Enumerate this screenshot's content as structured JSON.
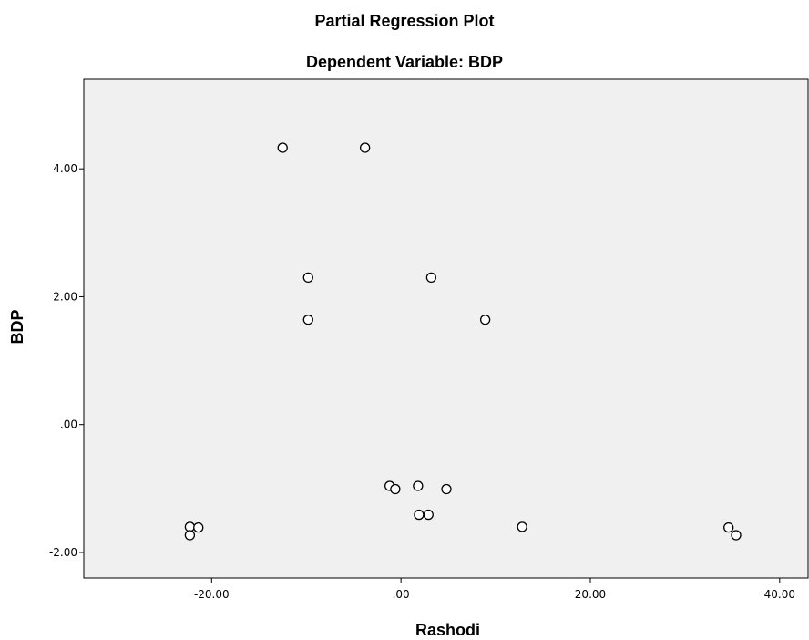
{
  "chart_data": {
    "type": "scatter",
    "title": "Partial Regression Plot",
    "subtitle": "Dependent Variable: BDP",
    "xlabel": "Rashodi",
    "ylabel": "BDP",
    "xlim": [
      -33.5,
      43
    ],
    "ylim": [
      -2.4,
      5.4
    ],
    "x_ticks": [
      -20,
      0,
      20,
      40
    ],
    "x_tick_labels": [
      "-20.00",
      ".00",
      "20.00",
      "40.00"
    ],
    "y_ticks": [
      -2,
      0,
      2,
      4
    ],
    "y_tick_labels": [
      "-2.00",
      ".00",
      "2.00",
      "4.00"
    ],
    "grid": false,
    "colors": {
      "plot_background": "#f0f0f0",
      "marker_edge": "#000000",
      "marker_fill": "#ffffff"
    },
    "points": [
      {
        "x": -12.5,
        "y": 4.33
      },
      {
        "x": -3.8,
        "y": 4.33
      },
      {
        "x": -9.8,
        "y": 2.3
      },
      {
        "x": 3.2,
        "y": 2.3
      },
      {
        "x": -9.8,
        "y": 1.64
      },
      {
        "x": 8.9,
        "y": 1.64
      },
      {
        "x": -1.2,
        "y": -0.96
      },
      {
        "x": -0.6,
        "y": -1.01
      },
      {
        "x": 1.8,
        "y": -0.96
      },
      {
        "x": 4.8,
        "y": -1.01
      },
      {
        "x": 1.9,
        "y": -1.41
      },
      {
        "x": 2.9,
        "y": -1.41
      },
      {
        "x": 12.8,
        "y": -1.6
      },
      {
        "x": -22.3,
        "y": -1.6
      },
      {
        "x": -21.4,
        "y": -1.61
      },
      {
        "x": -22.3,
        "y": -1.73
      },
      {
        "x": 34.6,
        "y": -1.61
      },
      {
        "x": 35.4,
        "y": -1.73
      }
    ]
  }
}
